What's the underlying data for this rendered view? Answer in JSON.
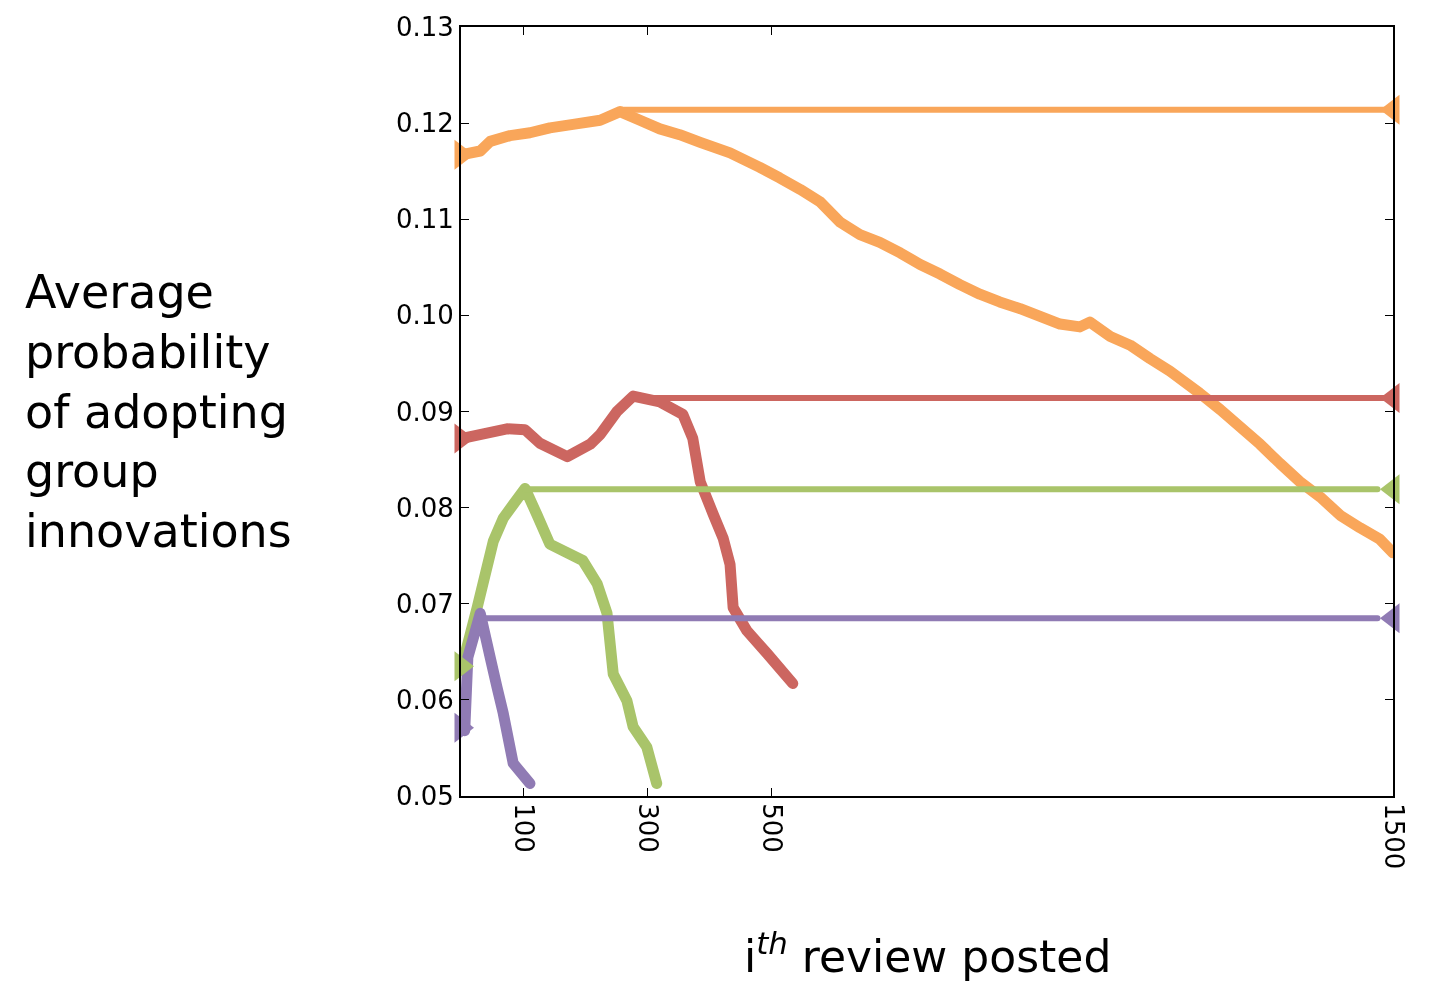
{
  "chart_data": {
    "type": "line",
    "xlabel": "i$^{th}$ review posted",
    "ylabel": "Average\nprobability\nof adopting\ngroup\ninnovations",
    "xlim": [
      0,
      1500
    ],
    "xticks": [
      100,
      300,
      500,
      1500
    ],
    "ylim": [
      0.05,
      0.13
    ],
    "yticks": [
      0.05,
      0.06,
      0.07,
      0.08,
      0.09,
      {
        "value": 0.1,
        "label": "0.10"
      },
      0.11,
      0.12,
      0.13
    ],
    "line_style": "solid",
    "series": [
      {
        "color": "#f9a65a",
        "x": [
          0,
          31,
          47,
          79,
          111,
          143,
          183,
          224,
          256,
          288,
          320,
          352,
          385,
          433,
          481,
          513,
          546,
          578,
          610,
          642,
          674,
          707,
          739,
          771,
          803,
          835,
          867,
          900,
          932,
          964,
          996,
          1012,
          1045,
          1077,
          1109,
          1141,
          1189,
          1222,
          1254,
          1286,
          1318,
          1350,
          1383,
          1415,
          1447,
          1479,
          1500
        ],
        "values": [
          0.1167,
          0.1171,
          0.1181,
          0.1187,
          0.119,
          0.1195,
          0.1199,
          0.1203,
          0.1212,
          0.1203,
          0.1194,
          0.1188,
          0.118,
          0.1169,
          0.1154,
          0.1143,
          0.1131,
          0.1118,
          0.1097,
          0.1084,
          0.1076,
          0.1065,
          0.1053,
          0.1043,
          0.1032,
          0.1022,
          0.1014,
          0.1007,
          0.0999,
          0.0991,
          0.0988,
          0.0993,
          0.0978,
          0.0969,
          0.0955,
          0.0942,
          0.0919,
          0.0902,
          0.0884,
          0.0866,
          0.0846,
          0.0827,
          0.0811,
          0.0792,
          0.0779,
          0.0767,
          0.0753
        ]
      },
      {
        "color": "#cc6660",
        "x": [
          2,
          74,
          103,
          127,
          171,
          208,
          224,
          251,
          277,
          320,
          357,
          373,
          385,
          406,
          422,
          433,
          438,
          460,
          493,
          534
        ],
        "values": [
          0.0872,
          0.0882,
          0.0881,
          0.0867,
          0.0853,
          0.0866,
          0.0876,
          0.09,
          0.0916,
          0.091,
          0.0897,
          0.0872,
          0.0827,
          0.0793,
          0.0768,
          0.0741,
          0.0696,
          0.0672,
          0.0648,
          0.0617
        ]
      },
      {
        "color": "#a9c46a",
        "x": [
          0,
          26,
          52,
          68,
          103,
          122,
          143,
          196,
          219,
          235,
          245,
          267,
          277,
          299,
          315
        ],
        "values": [
          0.0631,
          0.0696,
          0.0765,
          0.0789,
          0.082,
          0.0793,
          0.0762,
          0.0745,
          0.0721,
          0.069,
          0.0627,
          0.0599,
          0.0572,
          0.0551,
          0.0513
        ]
      },
      {
        "color": "#907bb4",
        "x": [
          6,
          11,
          31,
          47,
          58,
          68,
          84,
          111
        ],
        "values": [
          0.0568,
          0.0644,
          0.069,
          0.0644,
          0.0613,
          0.0586,
          0.0534,
          0.0513
        ]
      },
      {
        "color": "#f9a65a",
        "x": [
          256,
          1500
        ],
        "values": [
          0.1214,
          0.1214
        ]
      },
      {
        "color": "#cc6660",
        "x": [
          277,
          1500
        ],
        "values": [
          0.0914,
          0.0914
        ]
      },
      {
        "color": "#a9c46a",
        "x": [
          103,
          1475
        ],
        "values": [
          0.0819,
          0.0819
        ]
      },
      {
        "color": "#907bb4",
        "x": [
          31,
          1475
        ],
        "values": [
          0.0685,
          0.0685
        ]
      },
      {
        "type": "scatter",
        "marker": "triangle",
        "colors": [
          "#f9a65a",
          "#cc6660",
          "#a9c46a",
          "#907bb4"
        ],
        "x": [
          0,
          0,
          0,
          0
        ],
        "values": [
          0.1167,
          0.0872,
          0.0635,
          0.0571
        ]
      },
      {
        "type": "scatter",
        "marker": "triangle",
        "colors": [
          "#f9a65a",
          "#cc6660",
          "#a9c46a",
          "#907bb4"
        ],
        "x": [
          1500,
          1500,
          1500,
          1500
        ],
        "values": [
          0.1214,
          0.0914,
          0.0819,
          0.0685
        ]
      }
    ]
  }
}
